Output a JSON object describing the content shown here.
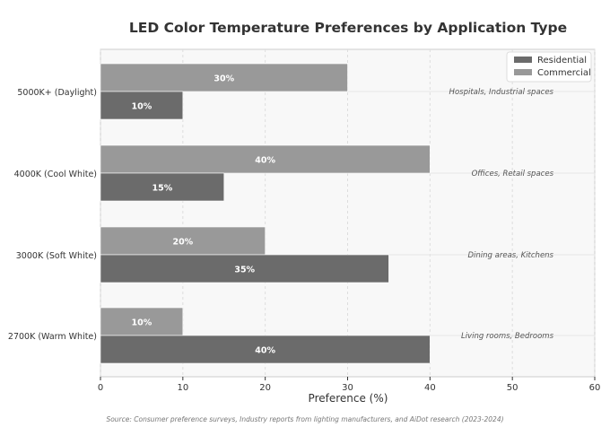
{
  "chart_data": {
    "type": "bar",
    "orientation": "horizontal",
    "title": "LED Color Temperature Preferences by Application Type",
    "xlabel": "Preference (%)",
    "ylabel": "",
    "xlim": [
      0,
      60
    ],
    "xticks": [
      0,
      10,
      20,
      30,
      40,
      50,
      60
    ],
    "grid": true,
    "legend_position": "top-right",
    "categories": [
      "5000K+ (Daylight)",
      "4000K (Cool White)",
      "3000K (Soft White)",
      "2700K (Warm White)"
    ],
    "series": [
      {
        "name": "Residential",
        "color": "#6b6b6b",
        "values": [
          10,
          15,
          35,
          40
        ]
      },
      {
        "name": "Commercial",
        "color": "#999999",
        "values": [
          30,
          40,
          20,
          10
        ]
      }
    ],
    "annotations": [
      "Hospitals, Industrial spaces",
      "Offices, Retail spaces",
      "Dining areas, Kitchens",
      "Living rooms, Bedrooms"
    ],
    "source": "Source: Consumer preference surveys, Industry reports from lighting manufacturers, and AiDot research (2023-2024)"
  }
}
